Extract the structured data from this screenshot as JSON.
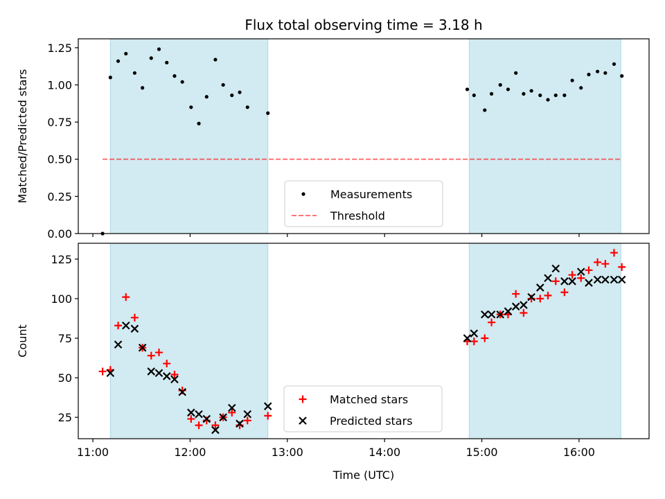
{
  "title": "Flux total observing time = 3.18 h",
  "colors": {
    "shade": "#add8e6",
    "threshold": "#ff0000",
    "matched": "#ff0000",
    "predicted": "#000000",
    "measurement": "#000000"
  },
  "chart_data": [
    {
      "type": "scatter",
      "panel": "top",
      "title": "Flux total observing time = 3.18 h",
      "xlabel": "",
      "ylabel": "Matched/Predicted stars",
      "x_unit": "hours UTC",
      "xlim": [
        10.85,
        16.72
      ],
      "ylim": [
        0.0,
        1.31
      ],
      "yticks": [
        0.0,
        0.25,
        0.5,
        0.75,
        1.0,
        1.25
      ],
      "ytick_labels": [
        "0.00",
        "0.25",
        "0.50",
        "0.75",
        "1.00",
        "1.25"
      ],
      "xticks": [
        11,
        12,
        13,
        14,
        15,
        16
      ],
      "shaded_regions": [
        [
          11.18,
          12.8
        ],
        [
          14.87,
          16.43
        ]
      ],
      "series": [
        {
          "name": "Measurements",
          "marker": "dot",
          "x": [
            11.1,
            11.18,
            11.26,
            11.34,
            11.43,
            11.51,
            11.6,
            11.68,
            11.76,
            11.84,
            11.92,
            12.01,
            12.09,
            12.17,
            12.26,
            12.34,
            12.43,
            12.51,
            12.59,
            12.8,
            14.85,
            14.92,
            15.03,
            15.1,
            15.19,
            15.27,
            15.35,
            15.43,
            15.51,
            15.6,
            15.68,
            15.76,
            15.85,
            15.93,
            16.02,
            16.1,
            16.19,
            16.27,
            16.36,
            16.44
          ],
          "y": [
            0.0,
            1.05,
            1.16,
            1.21,
            1.08,
            0.98,
            1.18,
            1.24,
            1.15,
            1.06,
            1.02,
            0.85,
            0.74,
            0.92,
            1.17,
            1.0,
            0.93,
            0.95,
            0.85,
            0.81,
            0.97,
            0.93,
            0.83,
            0.94,
            1.0,
            0.97,
            1.08,
            0.94,
            0.96,
            0.93,
            0.9,
            0.93,
            0.93,
            1.03,
            0.98,
            1.07,
            1.09,
            1.08,
            1.14,
            1.06
          ]
        },
        {
          "name": "Threshold",
          "style": "dashed",
          "x": [
            11.1,
            16.44
          ],
          "y": [
            0.5,
            0.5
          ]
        }
      ],
      "legend": {
        "placement": "lower-center",
        "entries": [
          "Measurements",
          "Threshold"
        ]
      }
    },
    {
      "type": "scatter",
      "panel": "bottom",
      "xlabel": "Time (UTC)",
      "ylabel": "Count",
      "x_unit": "hours UTC",
      "xlim": [
        10.85,
        16.72
      ],
      "ylim": [
        11.5,
        135.0
      ],
      "yticks": [
        25,
        50,
        75,
        100,
        125
      ],
      "ytick_labels": [
        "25",
        "50",
        "75",
        "100",
        "125"
      ],
      "xticks": [
        11,
        12,
        13,
        14,
        15,
        16
      ],
      "xtick_labels": [
        "11:00",
        "12:00",
        "13:00",
        "14:00",
        "15:00",
        "16:00"
      ],
      "shaded_regions": [
        [
          11.18,
          12.8
        ],
        [
          14.87,
          16.43
        ]
      ],
      "series": [
        {
          "name": "Matched stars",
          "marker": "plus",
          "x": [
            11.1,
            11.18,
            11.26,
            11.34,
            11.43,
            11.51,
            11.6,
            11.68,
            11.76,
            11.84,
            11.92,
            12.01,
            12.09,
            12.17,
            12.26,
            12.34,
            12.43,
            12.51,
            12.59,
            12.8,
            14.85,
            14.92,
            15.03,
            15.1,
            15.19,
            15.27,
            15.35,
            15.43,
            15.51,
            15.6,
            15.68,
            15.76,
            15.85,
            15.93,
            16.02,
            16.1,
            16.19,
            16.27,
            16.36,
            16.44
          ],
          "y": [
            54,
            55,
            83,
            101,
            88,
            69,
            64,
            66,
            59,
            52,
            42,
            24,
            20,
            23,
            20,
            25,
            28,
            20,
            23,
            26,
            73,
            73,
            75,
            85,
            90,
            90,
            103,
            91,
            100,
            100,
            102,
            111,
            104,
            115,
            113,
            118,
            123,
            122,
            129,
            120
          ]
        },
        {
          "name": "Predicted stars",
          "marker": "x",
          "x": [
            11.18,
            11.26,
            11.34,
            11.43,
            11.51,
            11.6,
            11.68,
            11.76,
            11.84,
            11.92,
            12.01,
            12.09,
            12.17,
            12.26,
            12.34,
            12.43,
            12.51,
            12.59,
            12.8,
            14.85,
            14.92,
            15.03,
            15.1,
            15.19,
            15.27,
            15.35,
            15.43,
            15.51,
            15.6,
            15.68,
            15.76,
            15.85,
            15.93,
            16.02,
            16.1,
            16.19,
            16.27,
            16.36,
            16.44
          ],
          "y": [
            53,
            71,
            83,
            81,
            69,
            54,
            53,
            51,
            49,
            41,
            28,
            27,
            24,
            17,
            25,
            31,
            21,
            27,
            32,
            75,
            78,
            90,
            90,
            90,
            92,
            95,
            96,
            101,
            107,
            113,
            119,
            111,
            111,
            117,
            110,
            112,
            112,
            112,
            112
          ]
        }
      ],
      "legend": {
        "placement": "lower-center",
        "entries": [
          "Matched stars",
          "Predicted stars"
        ]
      }
    }
  ]
}
